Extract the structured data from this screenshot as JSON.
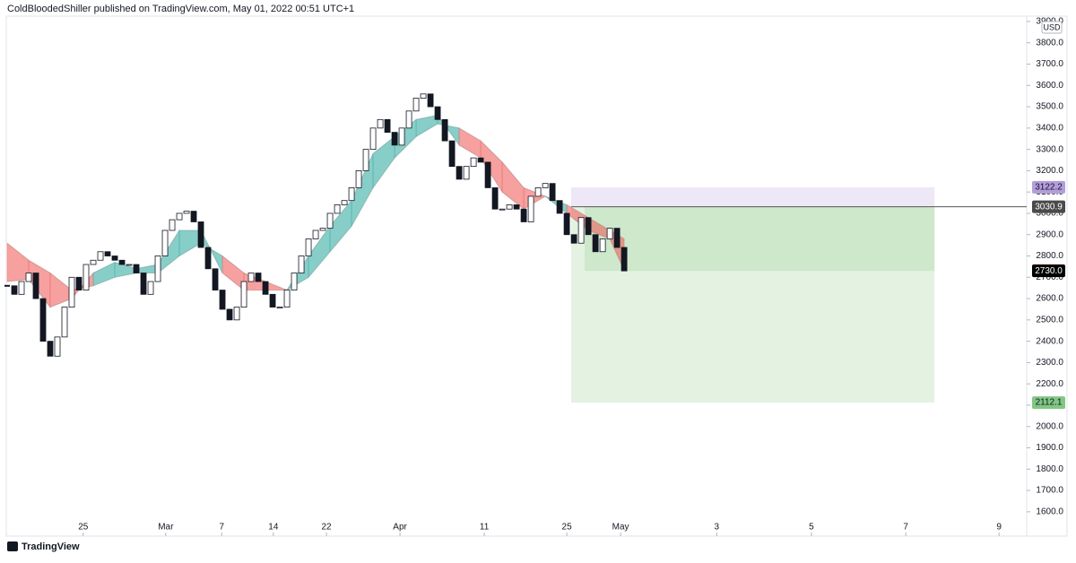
{
  "chart_data": {
    "type": "renko",
    "title": "ColdBloodedShiller published on TradingView.com, May 01, 2022 00:51 UTC+1",
    "currency": "USD",
    "brand": "TradingView",
    "values": [
      2660,
      2620,
      2680,
      2720,
      2600,
      2400,
      2330,
      2420,
      2560,
      2700,
      2640,
      2760,
      2780,
      2820,
      2800,
      2780,
      2760,
      2760,
      2720,
      2620,
      2680,
      2800,
      2920,
      2970,
      3000,
      3010,
      2960,
      2840,
      2740,
      2640,
      2550,
      2500,
      2560,
      2680,
      2720,
      2680,
      2620,
      2560,
      2560,
      2640,
      2720,
      2800,
      2880,
      2920,
      2930,
      3000,
      3040,
      3060,
      3120,
      3200,
      3300,
      3400,
      3440,
      3380,
      3320,
      3400,
      3480,
      3540,
      3560,
      3500,
      3440,
      3340,
      3220,
      3160,
      3220,
      3260,
      3240,
      3120,
      3020,
      3020,
      3040,
      3020,
      2960,
      3080,
      3120,
      3140,
      3060,
      3000,
      2900,
      2860,
      2980,
      2900,
      2820,
      2880,
      2930,
      2840,
      2730
    ],
    "last_price": {
      "value": 2730,
      "label": "2730.0"
    },
    "ribbon": {
      "x": [
        0,
        3,
        6,
        9,
        12,
        15,
        18,
        21,
        24,
        27,
        30,
        33,
        36,
        39,
        42,
        45,
        48,
        51,
        54,
        57,
        60,
        63,
        66,
        69,
        72,
        75,
        78,
        81,
        84,
        86
      ],
      "fast": [
        2680,
        2690,
        2560,
        2600,
        2720,
        2770,
        2740,
        2760,
        2920,
        2920,
        2720,
        2640,
        2640,
        2640,
        2800,
        2940,
        3060,
        3280,
        3360,
        3440,
        3460,
        3320,
        3260,
        3100,
        3020,
        3080,
        3000,
        2920,
        2880,
        2732.2
      ],
      "slow": [
        2860,
        2780,
        2720,
        2640,
        2660,
        2700,
        2720,
        2720,
        2800,
        2860,
        2800,
        2720,
        2680,
        2640,
        2700,
        2820,
        2940,
        3120,
        3260,
        3360,
        3420,
        3400,
        3340,
        3240,
        3120,
        3080,
        3040,
        2980,
        2920,
        2880
      ],
      "up_color": "#26a69a",
      "down_color": "#ef5350"
    },
    "position": {
      "stop": 3122.2,
      "entry": 3030.9,
      "target": 2112.1,
      "start": 78.6,
      "fill_start": 80.5,
      "end": 129.25
    },
    "xlim": [
      0,
      142.1
    ],
    "xticks": [
      {
        "value": 10.6,
        "label": "25"
      },
      {
        "value": 22.1,
        "label": "Mar"
      },
      {
        "value": 29.9,
        "label": "7"
      },
      {
        "value": 37.1,
        "label": "14"
      },
      {
        "value": 44.5,
        "label": "22"
      },
      {
        "value": 54.75,
        "label": "Apr"
      },
      {
        "value": 66.5,
        "label": "11"
      },
      {
        "value": 78,
        "label": "25"
      },
      {
        "value": 85.5,
        "label": "May"
      },
      {
        "value": 98.9,
        "label": "3"
      },
      {
        "value": 112.1,
        "label": "5"
      },
      {
        "value": 125.25,
        "label": "7"
      },
      {
        "value": 138.25,
        "label": "9"
      }
    ],
    "ylim": [
      1570,
      3925
    ],
    "yticks": [
      {
        "value": 1600,
        "label": "1600.0"
      },
      {
        "value": 1700,
        "label": "1700.0"
      },
      {
        "value": 1800,
        "label": "1800.0"
      },
      {
        "value": 1900,
        "label": "1900.0"
      },
      {
        "value": 2000,
        "label": "2000.0"
      },
      {
        "value": 2100,
        "label": "2100.0"
      },
      {
        "value": 2200,
        "label": "2200.0"
      },
      {
        "value": 2300,
        "label": "2300.0"
      },
      {
        "value": 2400,
        "label": "2400.0"
      },
      {
        "value": 2500,
        "label": "2500.0"
      },
      {
        "value": 2600,
        "label": "2600.0"
      },
      {
        "value": 2700,
        "label": "2700.0"
      },
      {
        "value": 2800,
        "label": "2800.0"
      },
      {
        "value": 2900,
        "label": "2900.0"
      },
      {
        "value": 3000,
        "label": "3000.0"
      },
      {
        "value": 3100,
        "label": "3100.0"
      },
      {
        "value": 3200,
        "label": "3200.0"
      },
      {
        "value": 3300,
        "label": "3300.0"
      },
      {
        "value": 3400,
        "label": "3400.0"
      },
      {
        "value": 3500,
        "label": "3500.0"
      },
      {
        "value": 3600,
        "label": "3600.0"
      },
      {
        "value": 3700,
        "label": "3700.0"
      },
      {
        "value": 3800,
        "label": "3800.0"
      },
      {
        "value": 3900,
        "label": "3900.0"
      }
    ]
  }
}
